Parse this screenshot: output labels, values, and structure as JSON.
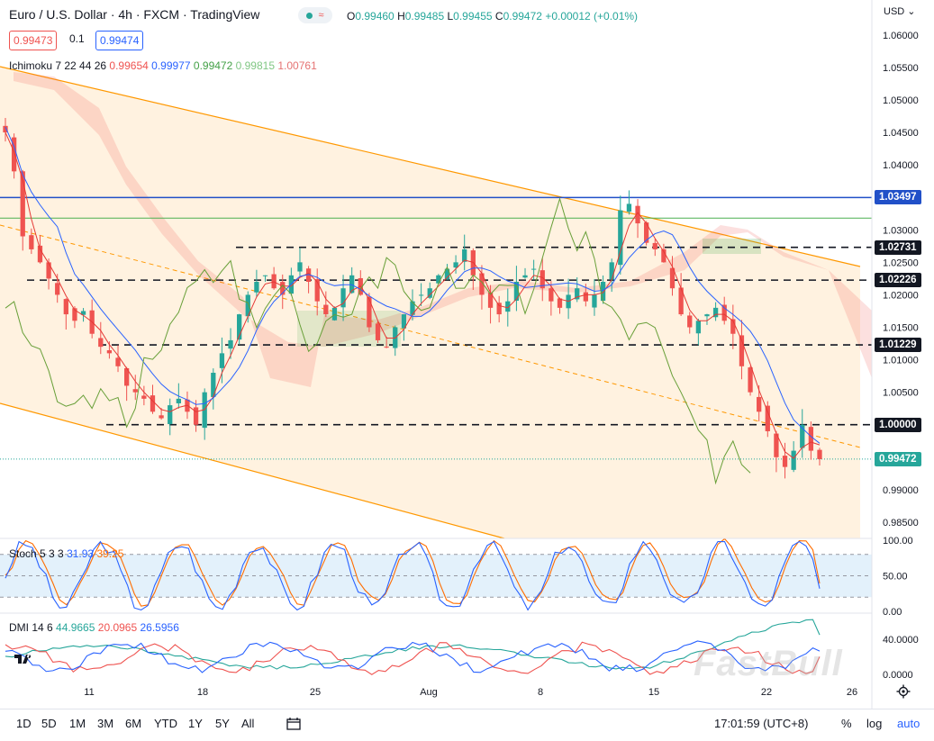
{
  "header": {
    "symbol_name": "Euro / U.S. Dollar",
    "interval": "4h",
    "exchange": "FXCM",
    "platform": "TradingView",
    "separator": "·",
    "ohlc": {
      "o_label": "O",
      "o": "0.99460",
      "h_label": "H",
      "h": "0.99485",
      "l_label": "L",
      "l": "0.99455",
      "c_label": "C",
      "c": "0.99472",
      "change": "+0.00012 (+0.01%)"
    },
    "bid": "0.99473",
    "spread": "0.1",
    "ask": "0.99474",
    "currency": "USD"
  },
  "indicators": {
    "ichimoku": {
      "name": "Ichimoku 7 22 44 26",
      "v1": "0.99654",
      "v2": "0.99977",
      "v3": "0.99472",
      "v4": "0.99815",
      "v5": "1.00761"
    },
    "stoch": {
      "name": "Stoch 5 3 3",
      "k": "31.93",
      "d": "39.25"
    },
    "dmi": {
      "name": "DMI 14 6",
      "adx": "44.9665",
      "minus": "20.0965",
      "plus": "26.5956"
    }
  },
  "colors": {
    "up": "#26a69a",
    "down": "#ef5350",
    "accent": "#2962ff",
    "channel": "#ff9800",
    "hline": "#131722",
    "blue_line": "#2150c8",
    "cloud_red": "#f7c9c4",
    "cloud_green": "#cfe5cf",
    "stoch_band": "#e3f1fb"
  },
  "price_axis": {
    "ticks": [
      "1.06000",
      "1.05500",
      "1.05000",
      "1.04500",
      "1.04000",
      "1.03500",
      "1.03000",
      "1.02500",
      "1.02000",
      "1.01500",
      "1.01000",
      "1.00500",
      "1.00000",
      "0.99500",
      "0.99000",
      "0.98500"
    ],
    "tags": [
      {
        "text": "1.03497",
        "style": "blue"
      },
      {
        "text": "1.02731",
        "style": "black"
      },
      {
        "text": "1.02226",
        "style": "black"
      },
      {
        "text": "1.01229",
        "style": "black"
      },
      {
        "text": "1.00000",
        "style": "black"
      },
      {
        "text": "0.99472",
        "style": "green"
      }
    ]
  },
  "stoch_axis": [
    "100.00",
    "50.00",
    "0.00"
  ],
  "dmi_axis": [
    "40.0000",
    "0.0000"
  ],
  "time_axis": [
    "11",
    "18",
    "25",
    "Aug",
    "8",
    "15",
    "22",
    "26"
  ],
  "bottom": {
    "ranges": [
      "1D",
      "5D",
      "1M",
      "3M",
      "6M",
      "YTD",
      "1Y",
      "5Y",
      "All"
    ],
    "clock": "17:01:59 (UTC+8)",
    "percent": "%",
    "log": "log",
    "auto": "auto"
  },
  "watermark": "FastBull",
  "chart_data": {
    "type": "candlestick",
    "symbol": "EURUSD",
    "interval": "4h",
    "y_range": [
      0.9825,
      1.0615
    ],
    "horizontal_levels": [
      1.03497,
      1.02731,
      1.02226,
      1.01229,
      1.0
    ],
    "last_price": 0.99472,
    "candle_close_path": [
      1.045,
      1.039,
      1.029,
      1.027,
      1.025,
      1.0225,
      1.02,
      1.017,
      1.016,
      1.0175,
      1.014,
      1.012,
      1.011,
      1.009,
      1.006,
      1.005,
      1.004,
      1.002,
      1.001,
      1.003,
      1.004,
      1.002,
      1.0,
      1.005,
      1.008,
      1.011,
      1.013,
      1.017,
      1.02,
      1.022,
      1.023,
      1.021,
      1.02,
      1.023,
      1.025,
      1.022,
      1.019,
      1.017,
      1.018,
      1.021,
      1.023,
      1.02,
      1.015,
      1.013,
      1.012,
      1.015,
      1.017,
      1.019,
      1.02,
      1.021,
      1.023,
      1.024,
      1.025,
      1.027,
      1.023,
      1.02,
      1.018,
      1.017,
      1.019,
      1.022,
      1.023,
      1.024,
      1.021,
      1.019,
      1.018,
      1.02,
      1.021,
      1.019,
      1.02,
      1.022,
      1.025,
      1.033,
      1.034,
      1.031,
      1.028,
      1.027,
      1.025,
      1.021,
      1.017,
      1.015,
      1.016,
      1.017,
      1.018,
      1.016,
      1.014,
      1.009,
      1.005,
      1.002,
      0.999,
      0.995,
      0.9935,
      0.996,
      1.0,
      0.996,
      0.9947
    ],
    "stoch_k_last": 31.93,
    "stoch_d_last": 39.25,
    "dmi_adx_last": 44.9665,
    "dmi_minus_last": 20.0965,
    "dmi_plus_last": 26.5956
  }
}
